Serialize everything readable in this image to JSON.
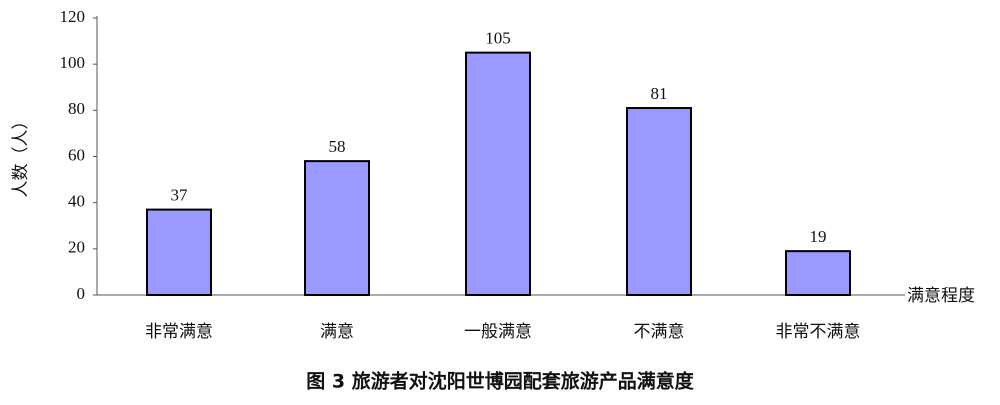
{
  "chart_data": {
    "type": "bar",
    "caption": "图 3  旅游者对沈阳世博园配套旅游产品满意度",
    "x_label": "满意程度",
    "y_label": "人数（人）",
    "categories": [
      "非常满意",
      "满意",
      "一般满意",
      "不满意",
      "非常不满意"
    ],
    "values": [
      37,
      58,
      105,
      81,
      19
    ],
    "color": "#9999ff",
    "ylim": [
      0,
      120
    ],
    "yticks": [
      0,
      20,
      40,
      60,
      80,
      100,
      120
    ],
    "grid": false
  }
}
